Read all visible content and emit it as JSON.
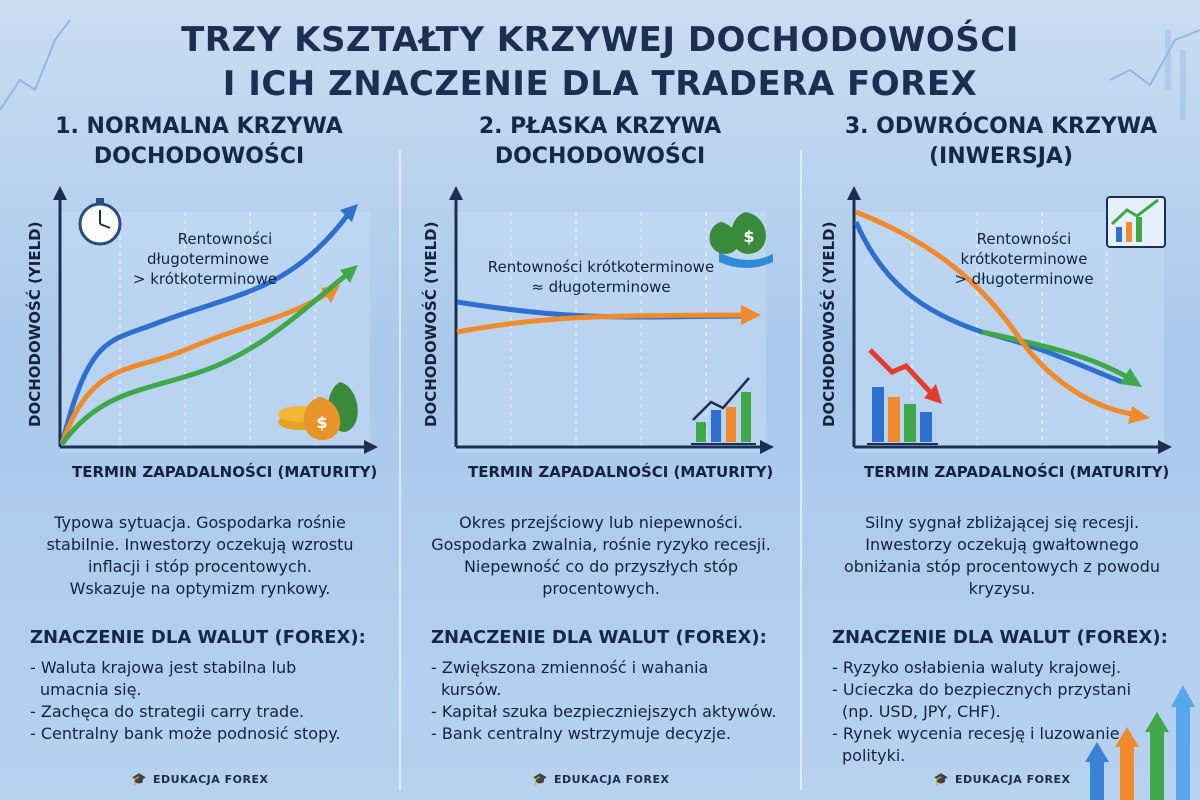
{
  "title": {
    "line1": "TRZY KSZTAŁTY KRZYWEJ DOCHODOWOŚCI",
    "line2": "I ICH ZNACZENIE DLA TRADERA FOREX"
  },
  "panels": [
    {
      "title_line1": "1. NORMALNA KRZYWA",
      "title_line2": "DOCHODOWOŚCI",
      "y_axis": "DOCHODOWOŚĆ (YIELD)",
      "x_axis": "TERMIN ZAPADALNOŚCI (MATURITY)",
      "annotation": [
        "Rentowności",
        "długoterminowe",
        "> krótkoterminowe"
      ],
      "icons": [
        "stopwatch-icon",
        "money-bags-icon"
      ],
      "description": [
        "Typowa sytuacja. Gospodarka rośnie",
        "stabilnie. Inwestorzy oczekują wzrostu",
        "inflacji i stóp procentowych.",
        "Wskazuje na optymizm rynkowy."
      ],
      "fx_heading": "ZNACZENIE DLA WALUT (FOREX):",
      "fx_points": [
        "- Waluta krajowa jest stabilna lub",
        "  umacnia się.",
        "- Zachęca do strategii carry trade.",
        "- Centralny bank może podnosić stopy."
      ],
      "brand": "EDUKACJA FOREX"
    },
    {
      "title_line1": "2. PŁASKA KRZYWA",
      "title_line2": "DOCHODOWOŚCI",
      "y_axis": "DOCHODOWOŚĆ (YIELD)",
      "x_axis": "TERMIN ZAPADALNOŚCI (MATURITY)",
      "annotation": [
        "Rentowności krótkoterminowe",
        "≈ długoterminowe"
      ],
      "icons": [
        "money-hand-icon",
        "bar-chart-up-icon"
      ],
      "description": [
        "Okres przejściowy lub niepewności.",
        "Gospodarka zwalnia, rośnie ryzyko recesji.",
        "Niepewność co do przyszłych stóp",
        "procentowych."
      ],
      "fx_heading": "ZNACZENIE DLA WALUT (FOREX):",
      "fx_points": [
        "- Zwiększona zmienność i wahania",
        "  kursów.",
        "- Kapitał szuka bezpieczniejszych aktywów.",
        "- Bank centralny wstrzymuje decyzje."
      ],
      "brand": "EDUKACJA FOREX"
    },
    {
      "title_line1": "3. ODWRÓCONA KRZYWA",
      "title_line2": "(INWERSJA)",
      "y_axis": "DOCHODOWOŚĆ (YIELD)",
      "x_axis": "TERMIN ZAPADALNOŚCI (MATURITY)",
      "annotation": [
        "Rentowności",
        "krótkoterminowe",
        "> długoterminowe"
      ],
      "icons": [
        "chart-screen-icon",
        "bar-chart-down-icon"
      ],
      "description": [
        "Silny sygnał zbliżającej się recesji.",
        "Inwestorzy oczekują gwałtownego",
        "obniżania stóp procentowych z powodu",
        "kryzysu."
      ],
      "fx_heading": "ZNACZENIE DLA WALUT (FOREX):",
      "fx_points": [
        "- Ryzyko osłabienia waluty krajowej.",
        "- Ucieczka do bezpiecznych przystani",
        "  (np. USD, JPY, CHF).",
        "- Rynek wycenia recesję i luzowanie",
        "  polityki."
      ],
      "brand": "EDUKACJA FOREX"
    }
  ],
  "colors": {
    "blue": "#2f6fce",
    "orange": "#f08a2a",
    "green": "#3ea84a",
    "axis": "#1b2f52"
  }
}
